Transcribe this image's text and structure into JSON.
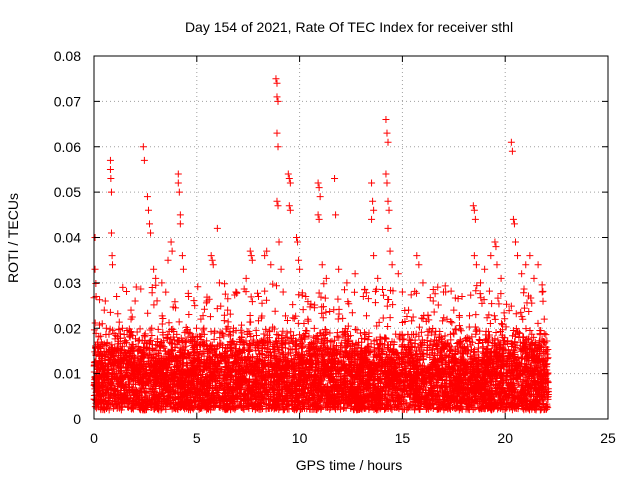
{
  "chart_data": {
    "type": "scatter",
    "title": "Day 154 of 2021, Rate Of TEC Index for receiver sthl",
    "xlabel": "GPS time / hours",
    "ylabel": "ROTI / TECUs",
    "xlim": [
      0,
      25
    ],
    "ylim": [
      0,
      0.08
    ],
    "x_ticks": [
      0,
      5,
      10,
      15,
      20,
      25
    ],
    "x_tick_labels": [
      "0",
      "5",
      "10",
      "15",
      "20",
      "25"
    ],
    "y_ticks": [
      0,
      0.01,
      0.02,
      0.03,
      0.04,
      0.05,
      0.06,
      0.07,
      0.08
    ],
    "y_tick_labels": [
      "0",
      "0.01",
      "0.02",
      "0.03",
      "0.04",
      "0.05",
      "0.06",
      "0.07",
      "0.08"
    ],
    "grid": true,
    "marker": "+",
    "marker_color": "#ff0000",
    "series": [
      {
        "points": [
          [
            0.05,
            0.04
          ],
          [
            0.05,
            0.033
          ],
          [
            0.1,
            0.027
          ],
          [
            0.1,
            0.014
          ],
          [
            0.15,
            0.011
          ],
          [
            0.2,
            0.008
          ],
          [
            0.3,
            0.016
          ],
          [
            0.4,
            0.021
          ],
          [
            0.5,
            0.024
          ],
          [
            0.55,
            0.026
          ],
          [
            0.6,
            0.02
          ],
          [
            0.8,
            0.057
          ],
          [
            0.8,
            0.055
          ],
          [
            0.82,
            0.053
          ],
          [
            0.85,
            0.05
          ],
          [
            0.85,
            0.041
          ],
          [
            0.88,
            0.036
          ],
          [
            0.9,
            0.034
          ],
          [
            1.1,
            0.027
          ],
          [
            1.4,
            0.029
          ],
          [
            1.8,
            0.024
          ],
          [
            2.0,
            0.026
          ],
          [
            2.4,
            0.06
          ],
          [
            2.45,
            0.057
          ],
          [
            2.6,
            0.049
          ],
          [
            2.65,
            0.046
          ],
          [
            2.7,
            0.043
          ],
          [
            2.75,
            0.041
          ],
          [
            2.9,
            0.033
          ],
          [
            3.0,
            0.031
          ],
          [
            3.3,
            0.03
          ],
          [
            3.6,
            0.035
          ],
          [
            3.75,
            0.039
          ],
          [
            3.8,
            0.037
          ],
          [
            4.1,
            0.054
          ],
          [
            4.1,
            0.052
          ],
          [
            4.15,
            0.05
          ],
          [
            4.2,
            0.045
          ],
          [
            4.2,
            0.043
          ],
          [
            4.3,
            0.036
          ],
          [
            4.35,
            0.033
          ],
          [
            4.6,
            0.027
          ],
          [
            4.9,
            0.025
          ],
          [
            5.2,
            0.022
          ],
          [
            5.5,
            0.026
          ],
          [
            5.7,
            0.036
          ],
          [
            5.75,
            0.035
          ],
          [
            5.8,
            0.034
          ],
          [
            6.0,
            0.042
          ],
          [
            6.1,
            0.03
          ],
          [
            6.5,
            0.024
          ],
          [
            6.9,
            0.028
          ],
          [
            7.4,
            0.031
          ],
          [
            7.6,
            0.037
          ],
          [
            7.65,
            0.036
          ],
          [
            7.7,
            0.035
          ],
          [
            8.0,
            0.027
          ],
          [
            8.3,
            0.036
          ],
          [
            8.4,
            0.037
          ],
          [
            8.6,
            0.034
          ],
          [
            8.85,
            0.075
          ],
          [
            8.9,
            0.074
          ],
          [
            8.9,
            0.071
          ],
          [
            8.95,
            0.07
          ],
          [
            8.9,
            0.063
          ],
          [
            8.95,
            0.06
          ],
          [
            8.9,
            0.048
          ],
          [
            8.95,
            0.047
          ],
          [
            9.0,
            0.039
          ],
          [
            9.1,
            0.033
          ],
          [
            9.2,
            0.028
          ],
          [
            9.45,
            0.054
          ],
          [
            9.5,
            0.053
          ],
          [
            9.55,
            0.052
          ],
          [
            9.5,
            0.047
          ],
          [
            9.55,
            0.046
          ],
          [
            9.85,
            0.04
          ],
          [
            9.9,
            0.039
          ],
          [
            9.95,
            0.035
          ],
          [
            10.0,
            0.033
          ],
          [
            10.3,
            0.027
          ],
          [
            10.9,
            0.052
          ],
          [
            10.95,
            0.051
          ],
          [
            11.0,
            0.049
          ],
          [
            10.9,
            0.045
          ],
          [
            10.95,
            0.044
          ],
          [
            11.1,
            0.034
          ],
          [
            11.3,
            0.031
          ],
          [
            11.7,
            0.053
          ],
          [
            11.75,
            0.045
          ],
          [
            11.9,
            0.033
          ],
          [
            12.3,
            0.03
          ],
          [
            12.7,
            0.032
          ],
          [
            13.1,
            0.027
          ],
          [
            13.5,
            0.052
          ],
          [
            13.55,
            0.048
          ],
          [
            13.6,
            0.046
          ],
          [
            13.5,
            0.044
          ],
          [
            13.6,
            0.036
          ],
          [
            13.8,
            0.031
          ],
          [
            14.2,
            0.066
          ],
          [
            14.25,
            0.063
          ],
          [
            14.3,
            0.061
          ],
          [
            14.2,
            0.054
          ],
          [
            14.25,
            0.052
          ],
          [
            14.3,
            0.048
          ],
          [
            14.35,
            0.046
          ],
          [
            14.3,
            0.042
          ],
          [
            14.4,
            0.037
          ],
          [
            14.5,
            0.034
          ],
          [
            14.8,
            0.032
          ],
          [
            15.0,
            0.028
          ],
          [
            15.3,
            0.024
          ],
          [
            15.7,
            0.036
          ],
          [
            15.8,
            0.034
          ],
          [
            16.0,
            0.03
          ],
          [
            16.5,
            0.026
          ],
          [
            17.0,
            0.028
          ],
          [
            17.5,
            0.024
          ],
          [
            17.9,
            0.027
          ],
          [
            18.45,
            0.047
          ],
          [
            18.5,
            0.046
          ],
          [
            18.55,
            0.044
          ],
          [
            18.5,
            0.036
          ],
          [
            18.6,
            0.034
          ],
          [
            18.8,
            0.03
          ],
          [
            19.0,
            0.033
          ],
          [
            19.3,
            0.036
          ],
          [
            19.5,
            0.039
          ],
          [
            19.55,
            0.038
          ],
          [
            19.6,
            0.034
          ],
          [
            19.8,
            0.031
          ],
          [
            20.3,
            0.061
          ],
          [
            20.35,
            0.059
          ],
          [
            20.4,
            0.044
          ],
          [
            20.45,
            0.043
          ],
          [
            20.5,
            0.039
          ],
          [
            20.6,
            0.036
          ],
          [
            20.8,
            0.032
          ],
          [
            21.0,
            0.034
          ],
          [
            21.2,
            0.036
          ],
          [
            21.4,
            0.031
          ],
          [
            21.6,
            0.034
          ],
          [
            21.8,
            0.028
          ],
          [
            21.9,
            0.022
          ],
          [
            22.0,
            0.015
          ],
          [
            22.05,
            0.01
          ],
          [
            22.1,
            0.006
          ]
        ],
        "dense_band": {
          "x_range": [
            0,
            22.1
          ],
          "y_floor": 0.002,
          "typical_upper": 0.02,
          "occasional_upper": 0.03
        }
      }
    ]
  }
}
